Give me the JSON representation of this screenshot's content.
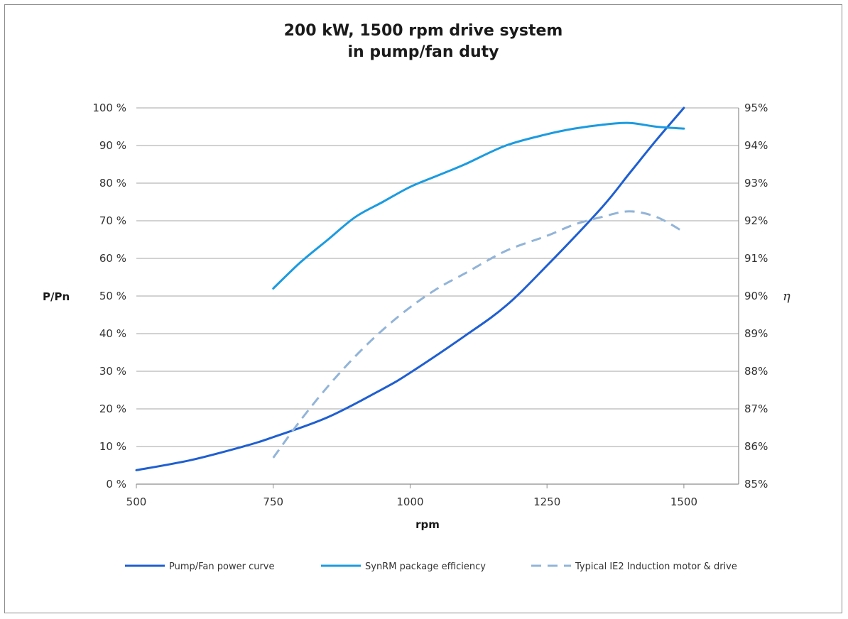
{
  "chart_data": {
    "type": "line",
    "title_lines": [
      "200 kW, 1500 rpm drive system",
      "in pump/fan duty"
    ],
    "xlabel": "rpm",
    "ylabel_left": "P/Pn",
    "ylabel_right": "η",
    "x_ticks": [
      "500",
      "750",
      "1000",
      "1250",
      "1500"
    ],
    "xlim": [
      500,
      1600
    ],
    "y_left_ticks": [
      "0 %",
      "10 %",
      "20 %",
      "30 %",
      "40 %",
      "50 %",
      "60 %",
      "70 %",
      "80 %",
      "90 %",
      "100 %"
    ],
    "y_left_lim": [
      0,
      100
    ],
    "y_right_ticks": [
      "85%",
      "86%",
      "87%",
      "88%",
      "89%",
      "90%",
      "91%",
      "92%",
      "93%",
      "94%",
      "95%"
    ],
    "y_right_lim": [
      85,
      95
    ],
    "grid": true,
    "legend_position": "bottom",
    "series": [
      {
        "name": "Pump/Fan power curve",
        "axis": "left",
        "color": "#1f5fd1",
        "dash": false,
        "x": [
          500,
          600,
          700,
          750,
          850,
          950,
          1000,
          1100,
          1175,
          1250,
          1350,
          1400,
          1450,
          1500
        ],
        "y": [
          3.7,
          6.4,
          10.2,
          12.5,
          17.8,
          25.3,
          29.6,
          39.4,
          47.4,
          58.1,
          73.5,
          82.5,
          91.5,
          100
        ]
      },
      {
        "name": "SynRM package efficiency",
        "axis": "right",
        "color": "#1b9be0",
        "dash": false,
        "x": [
          750,
          800,
          850,
          900,
          950,
          1000,
          1050,
          1100,
          1175,
          1250,
          1300,
          1350,
          1400,
          1450,
          1500
        ],
        "y": [
          90.2,
          90.9,
          91.5,
          92.1,
          92.5,
          92.9,
          93.2,
          93.5,
          94.0,
          94.3,
          94.45,
          94.55,
          94.6,
          94.5,
          94.45
        ]
      },
      {
        "name": "Typical IE2 Induction motor & drive",
        "axis": "right",
        "color": "#92b4d8",
        "dash": true,
        "x": [
          750,
          800,
          850,
          900,
          950,
          1000,
          1050,
          1100,
          1175,
          1250,
          1300,
          1350,
          1400,
          1450,
          1500
        ],
        "y": [
          85.7,
          86.7,
          87.6,
          88.4,
          89.1,
          89.7,
          90.2,
          90.6,
          91.2,
          91.6,
          91.9,
          92.1,
          92.25,
          92.1,
          91.7
        ]
      }
    ]
  }
}
